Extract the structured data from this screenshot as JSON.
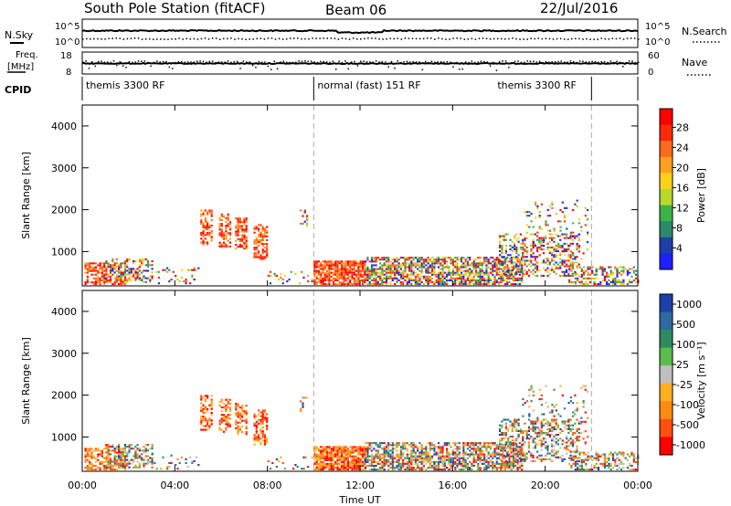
{
  "header": {
    "station": "South Pole Station (fitACF)",
    "beam": "Beam 06",
    "date": "22/Jul/2016"
  },
  "strip_labels": {
    "nsky": "N.Sky",
    "nsearch": "N.Search",
    "freq_line1": "Freq.",
    "freq_line2": "[MHz]",
    "nave": "Nave",
    "cpid": "CPID",
    "noise_top": "10^5",
    "noise_bottom": "10^0",
    "freq_top": "18",
    "freq_bottom": "8",
    "nave_top": "60",
    "nave_bottom": "0"
  },
  "cpid_segments": [
    {
      "label": "themis 3300 RF",
      "start": 0,
      "end": 10
    },
    {
      "label": "normal (fast) 151 RF",
      "start": 10,
      "end": 22
    },
    {
      "label": "themis 3300 RF",
      "start": 22,
      "end": 24
    }
  ],
  "chart_data": [
    {
      "type": "heatmap",
      "name": "power-panel",
      "ylabel": "Slant Range [km]",
      "xlim": [
        0,
        24
      ],
      "ylim": [
        180,
        4500
      ],
      "yticks": [
        1000,
        2000,
        3000,
        4000
      ],
      "colorbar_label": "Power [dB]",
      "colorbar_ticks": [
        "4",
        "8",
        "12",
        "16",
        "20",
        "24",
        "28"
      ],
      "colorbar_colors": [
        "#1f1fff",
        "#1e3fa8",
        "#2c8a6a",
        "#3bb34a",
        "#b9d92a",
        "#ffd21a",
        "#ffa020",
        "#ff6a1a",
        "#ff2a0a",
        "#ff0000"
      ]
    },
    {
      "type": "heatmap",
      "name": "velocity-panel",
      "ylabel": "Slant Range [km]",
      "xlabel": "Time UT",
      "xlim": [
        0,
        24
      ],
      "ylim": [
        180,
        4500
      ],
      "yticks": [
        1000,
        2000,
        3000,
        4000
      ],
      "xticks": [
        "00:00",
        "04:00",
        "08:00",
        "12:00",
        "16:00",
        "20:00",
        "00:00"
      ],
      "colorbar_label": "Velocity [m s⁻¹]",
      "colorbar_ticks": [
        "1000",
        "500",
        "100",
        "25",
        "-25",
        "-100",
        "-500",
        "-1000"
      ],
      "colorbar_colors": [
        "#1e3fa8",
        "#2d6aa0",
        "#2e8a60",
        "#5bbd4a",
        "#bfbfbf",
        "#ffb020",
        "#ff8a10",
        "#ff5010",
        "#ff0000"
      ]
    }
  ]
}
